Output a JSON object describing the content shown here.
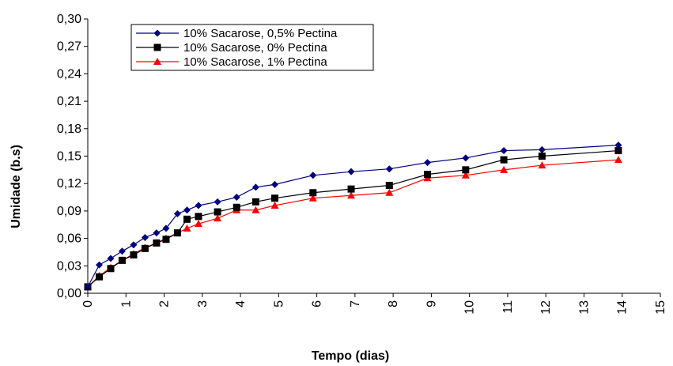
{
  "chart_data": {
    "type": "line",
    "title": "",
    "xlabel": "Tempo (dias)",
    "ylabel": "Umidade (b.s)",
    "xlim": [
      0,
      15
    ],
    "ylim": [
      0,
      0.3
    ],
    "x_ticks": [
      "0",
      "1",
      "2",
      "3",
      "4",
      "5",
      "6",
      "7",
      "8",
      "9",
      "10",
      "11",
      "12",
      "13",
      "14",
      "15"
    ],
    "y_ticks": [
      "0,00",
      "0,03",
      "0,06",
      "0,09",
      "0,12",
      "0,15",
      "0,18",
      "0,21",
      "0,24",
      "0,27",
      "0,30"
    ],
    "grid": false,
    "legend_position": "top-left",
    "series": [
      {
        "name": "10% Sacarose, 0,5% Pectina",
        "color": "#000080",
        "marker": "diamond",
        "x": [
          0,
          0.3,
          0.6,
          0.9,
          1.2,
          1.5,
          1.8,
          2.05,
          2.35,
          2.6,
          2.9,
          3.4,
          3.9,
          4.4,
          4.9,
          5.9,
          6.9,
          7.9,
          8.9,
          9.9,
          10.9,
          11.9,
          13.9
        ],
        "y": [
          0.007,
          0.031,
          0.038,
          0.046,
          0.053,
          0.061,
          0.066,
          0.071,
          0.087,
          0.091,
          0.096,
          0.1,
          0.105,
          0.116,
          0.119,
          0.129,
          0.133,
          0.136,
          0.143,
          0.148,
          0.156,
          0.157,
          0.162
        ]
      },
      {
        "name": "10% Sacarose, 0% Pectina",
        "color": "#000000",
        "marker": "square",
        "x": [
          0,
          0.3,
          0.6,
          0.9,
          1.2,
          1.5,
          1.8,
          2.05,
          2.35,
          2.6,
          2.9,
          3.4,
          3.9,
          4.4,
          4.9,
          5.9,
          6.9,
          7.9,
          8.9,
          9.9,
          10.9,
          11.9,
          13.9
        ],
        "y": [
          0.007,
          0.018,
          0.027,
          0.036,
          0.042,
          0.049,
          0.055,
          0.059,
          0.066,
          0.081,
          0.084,
          0.089,
          0.094,
          0.1,
          0.104,
          0.11,
          0.114,
          0.118,
          0.13,
          0.135,
          0.146,
          0.15,
          0.156
        ]
      },
      {
        "name": "10% Sacarose, 1% Pectina",
        "color": "#ff0000",
        "marker": "triangle",
        "x": [
          0,
          0.3,
          0.6,
          0.9,
          1.2,
          1.5,
          1.8,
          2.05,
          2.35,
          2.6,
          2.9,
          3.4,
          3.9,
          4.4,
          4.9,
          5.9,
          6.9,
          7.9,
          8.9,
          9.9,
          10.9,
          11.9,
          13.9
        ],
        "y": [
          0.007,
          0.019,
          0.028,
          0.036,
          0.043,
          0.05,
          0.055,
          0.06,
          0.066,
          0.071,
          0.076,
          0.082,
          0.091,
          0.091,
          0.096,
          0.104,
          0.107,
          0.11,
          0.126,
          0.129,
          0.135,
          0.14,
          0.146
        ]
      }
    ]
  }
}
